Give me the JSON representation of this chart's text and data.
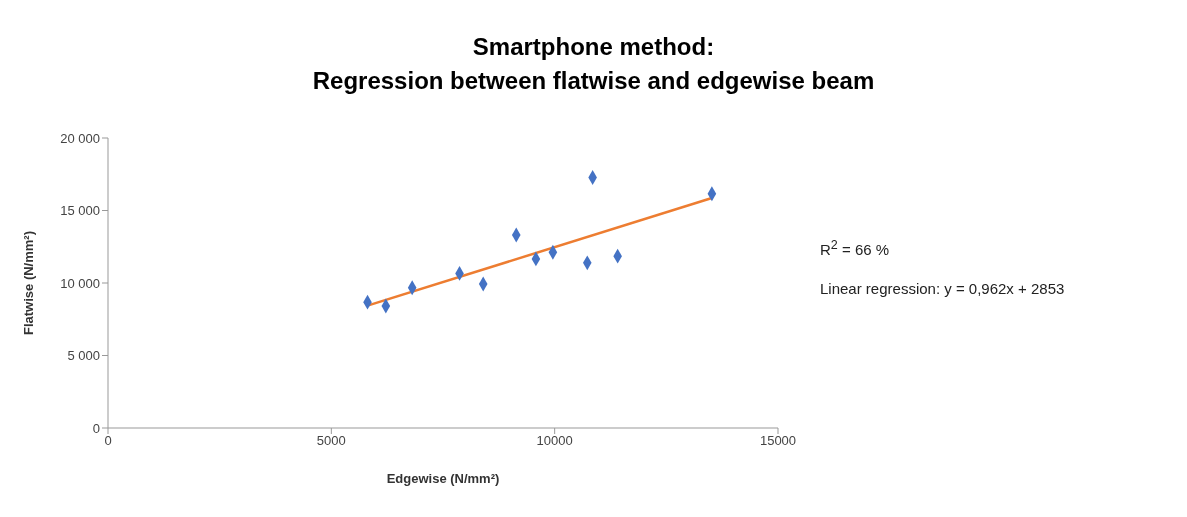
{
  "chart_data": {
    "type": "scatter",
    "title": "Smartphone method:\nRegression between flatwise and edgewise beam",
    "xlabel": "Edgewise (N/mm²)",
    "ylabel": "Flatwise (N/mm²)",
    "series": [
      {
        "color": "#4472c4",
        "marker": "diamond",
        "x": [
          5810,
          6220,
          6810,
          7870,
          8400,
          9140,
          9580,
          9960,
          10730,
          10850,
          11410,
          13520
        ],
        "values": [
          8680,
          8410,
          9670,
          10660,
          9930,
          13310,
          11660,
          12120,
          11390,
          17280,
          11850,
          16160
        ]
      },
      {
        "type": "line",
        "color": "#ed7d31",
        "marker": "none",
        "x": [
          5810,
          13520
        ],
        "values": [
          8440,
          15860
        ]
      }
    ],
    "xlim": [
      0,
      15000
    ],
    "xticks": [
      0,
      5000,
      10000,
      15000
    ],
    "ylim": [
      0,
      20000
    ],
    "yticks": [
      0,
      {
        "value": 5000,
        "label": "5 000"
      },
      {
        "value": 10000,
        "label": "10 000"
      },
      {
        "value": 15000,
        "label": "15 000"
      },
      {
        "value": 20000,
        "label": "20 000"
      }
    ],
    "grid": false,
    "legend": false,
    "annotations": [
      "R$^{2}$ = 66 %",
      "Linear regression: y = 0,962x + 2853"
    ]
  }
}
